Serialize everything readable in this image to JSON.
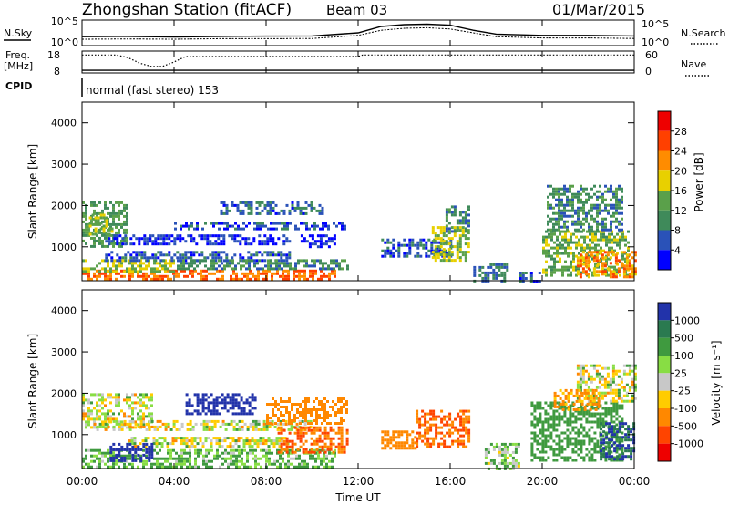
{
  "header": {
    "station": "Zhongshan Station (fitACF)",
    "beam": "Beam 03",
    "date": "01/Mar/2015"
  },
  "noise_panel": {
    "left_label": "N.Sky",
    "left_ticks": [
      "10^5",
      "10^0"
    ],
    "right_ticks": [
      "10^5",
      "10^0"
    ],
    "right_label": "N.Search"
  },
  "freq_panel": {
    "left_label_1": "Freq.",
    "left_label_2": "[MHz]",
    "left_ticks": [
      "18",
      "8"
    ],
    "right_ticks": [
      "60",
      "0"
    ],
    "right_label": "Nave"
  },
  "cpid": {
    "label": "CPID",
    "mode_text": "normal (fast stereo) 153"
  },
  "x_axis": {
    "label": "Time UT",
    "ticks": [
      "00:00",
      "04:00",
      "08:00",
      "12:00",
      "16:00",
      "20:00",
      "00:00"
    ]
  },
  "power_panel": {
    "ylabel": "Slant Range [km]",
    "yticks": [
      "1000",
      "2000",
      "3000",
      "4000"
    ],
    "colorbar_label": "Power [dB]",
    "colorbar_ticks": [
      "4",
      "8",
      "12",
      "16",
      "20",
      "24",
      "28"
    ]
  },
  "velocity_panel": {
    "ylabel": "Slant Range [km]",
    "yticks": [
      "1000",
      "2000",
      "3000",
      "4000"
    ],
    "colorbar_label": "Velocity [m s⁻¹]",
    "colorbar_ticks": [
      "1000",
      "500",
      "100",
      "25",
      "-25",
      "-100",
      "-500",
      "-1000"
    ]
  },
  "colors": {
    "power_scale": [
      "#0000ff",
      "#2a52b8",
      "#3f8a5a",
      "#5aa04a",
      "#e8d000",
      "#ff8c00",
      "#ff4000",
      "#ee0000"
    ],
    "velocity_scale": [
      "#2233aa",
      "#2a7a50",
      "#3f9a3f",
      "#88dd44",
      "#c8c8c8",
      "#ffcc00",
      "#ff8800",
      "#ff4400",
      "#ee0000"
    ]
  },
  "chart_data": [
    {
      "type": "line",
      "panel": "noise",
      "x_range_hours": [
        0,
        24
      ],
      "y_scale": "log",
      "series": [
        {
          "x": [
            0,
            2,
            4,
            6,
            8,
            10,
            12,
            13,
            14,
            15,
            16,
            17,
            18,
            20,
            22,
            24
          ],
          "y": [
            0.35,
            0.36,
            0.34,
            0.36,
            0.37,
            0.38,
            0.5,
            0.75,
            0.82,
            0.84,
            0.8,
            0.6,
            0.45,
            0.4,
            0.4,
            0.38
          ]
        },
        {
          "x": [
            0,
            2,
            4,
            6,
            8,
            10,
            12,
            13,
            14,
            15,
            16,
            17,
            18,
            20,
            22,
            24
          ],
          "y": [
            0.25,
            0.26,
            0.25,
            0.27,
            0.27,
            0.28,
            0.4,
            0.6,
            0.68,
            0.7,
            0.65,
            0.5,
            0.35,
            0.3,
            0.3,
            0.28
          ]
        }
      ]
    },
    {
      "type": "line",
      "panel": "frequency",
      "x_range_hours": [
        0,
        24
      ],
      "series": [
        {
          "x": [
            0,
            1.5,
            2,
            2.5,
            3,
            3.5,
            4,
            4.5,
            12,
            12.2,
            24
          ],
          "y": [
            0.82,
            0.82,
            0.7,
            0.45,
            0.3,
            0.3,
            0.5,
            0.75,
            0.75,
            0.82,
            0.82
          ]
        },
        {
          "x": [
            0,
            24
          ],
          "y": [
            0.12,
            0.12
          ]
        }
      ]
    },
    {
      "type": "heatmap",
      "panel": "power",
      "x_range_hours": [
        0,
        24
      ],
      "y_range_km": [
        180,
        4500
      ],
      "blobs": [
        {
          "t0": 0.0,
          "t1": 11.0,
          "r0": 200,
          "r1": 450,
          "v": 26
        },
        {
          "t0": 0.0,
          "t1": 4.0,
          "r0": 400,
          "r1": 700,
          "v": 18
        },
        {
          "t0": 0.0,
          "t1": 2.0,
          "r0": 1000,
          "r1": 2100,
          "v": 14
        },
        {
          "t0": 0.3,
          "t1": 1.3,
          "r0": 1300,
          "r1": 1800,
          "v": 18
        },
        {
          "t0": 1.0,
          "t1": 9.0,
          "r0": 1100,
          "r1": 1300,
          "v": 6
        },
        {
          "t0": 1.0,
          "t1": 9.0,
          "r0": 700,
          "r1": 900,
          "v": 8
        },
        {
          "t0": 4.0,
          "t1": 11.5,
          "r0": 1450,
          "r1": 1600,
          "v": 7
        },
        {
          "t0": 6.0,
          "t1": 10.5,
          "r0": 1800,
          "r1": 2100,
          "v": 9
        },
        {
          "t0": 4.0,
          "t1": 11.5,
          "r0": 450,
          "r1": 700,
          "v": 12
        },
        {
          "t0": 9.5,
          "t1": 11.0,
          "r0": 1000,
          "r1": 1300,
          "v": 5
        },
        {
          "t0": 13.0,
          "t1": 16.0,
          "r0": 800,
          "r1": 1200,
          "v": 8
        },
        {
          "t0": 15.2,
          "t1": 16.8,
          "r0": 700,
          "r1": 1500,
          "v": 18
        },
        {
          "t0": 15.8,
          "t1": 16.8,
          "r0": 1400,
          "r1": 2000,
          "v": 12
        },
        {
          "t0": 17.0,
          "t1": 18.5,
          "r0": 200,
          "r1": 600,
          "v": 10
        },
        {
          "t0": 20.0,
          "t1": 23.8,
          "r0": 300,
          "r1": 1400,
          "v": 16
        },
        {
          "t0": 21.5,
          "t1": 24.0,
          "r0": 300,
          "r1": 900,
          "v": 24
        },
        {
          "t0": 20.2,
          "t1": 23.5,
          "r0": 1400,
          "r1": 2500,
          "v": 12
        },
        {
          "t0": 19.0,
          "t1": 20.0,
          "r0": 200,
          "r1": 400,
          "v": 8
        }
      ]
    },
    {
      "type": "heatmap",
      "panel": "velocity",
      "x_range_hours": [
        0,
        24
      ],
      "y_range_km": [
        180,
        4500
      ],
      "blobs": [
        {
          "t0": 0.0,
          "t1": 11.0,
          "r0": 200,
          "r1": 650,
          "v": 80
        },
        {
          "t0": 0.0,
          "t1": 3.0,
          "r0": 1200,
          "r1": 2000,
          "v": 0
        },
        {
          "t0": 0.5,
          "t1": 10.0,
          "r0": 1100,
          "r1": 1350,
          "v": 0
        },
        {
          "t0": 2.0,
          "t1": 9.0,
          "r0": 700,
          "r1": 950,
          "v": 0
        },
        {
          "t0": 4.5,
          "t1": 7.5,
          "r0": 1500,
          "r1": 2000,
          "v": 900
        },
        {
          "t0": 8.0,
          "t1": 11.5,
          "r0": 1300,
          "r1": 1900,
          "v": -150
        },
        {
          "t0": 8.5,
          "t1": 11.5,
          "r0": 600,
          "r1": 1200,
          "v": -300
        },
        {
          "t0": 1.2,
          "t1": 3.0,
          "r0": 350,
          "r1": 800,
          "v": 1000
        },
        {
          "t0": 13.0,
          "t1": 14.5,
          "r0": 700,
          "r1": 1100,
          "v": -150
        },
        {
          "t0": 14.5,
          "t1": 16.8,
          "r0": 700,
          "r1": 1600,
          "v": -300
        },
        {
          "t0": 17.5,
          "t1": 19.0,
          "r0": 200,
          "r1": 800,
          "v": 50
        },
        {
          "t0": 19.5,
          "t1": 23.5,
          "r0": 400,
          "r1": 1800,
          "v": 200
        },
        {
          "t0": 22.5,
          "t1": 24.0,
          "r0": 400,
          "r1": 1300,
          "v": 700
        },
        {
          "t0": 21.5,
          "t1": 24.0,
          "r0": 1800,
          "r1": 2700,
          "v": 0
        },
        {
          "t0": 20.5,
          "t1": 22.5,
          "r0": 1600,
          "r1": 2100,
          "v": -100
        }
      ]
    }
  ]
}
